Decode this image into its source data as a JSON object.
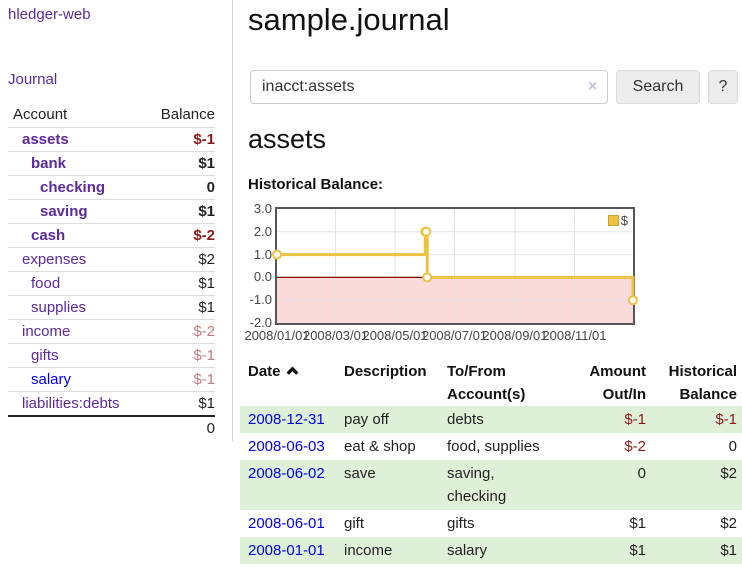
{
  "colors": {
    "purple_link": "#5b2a9a",
    "blue_link": "#0000ee",
    "negative_strong": "#8c1a1a",
    "negative_muted": "#c17d7d",
    "row_green": "#dff0d8",
    "chart_gold": "#edc240",
    "chart_negative_region": "#fbdada",
    "zero_line": "#8b0000"
  },
  "sidebar": {
    "brand": "hledger-web",
    "journal_link": "Journal",
    "accounts": {
      "header_account": "Account",
      "header_balance": "Balance",
      "rows": [
        {
          "name": "assets",
          "balance": "$-1",
          "indent": 1,
          "bold": true,
          "balance_style": "negative_strong"
        },
        {
          "name": "bank",
          "balance": "$1",
          "indent": 2,
          "bold": true,
          "balance_style": "normal"
        },
        {
          "name": "checking",
          "balance": "0",
          "indent": 3,
          "bold": true,
          "balance_style": "normal"
        },
        {
          "name": "saving",
          "balance": "$1",
          "indent": 3,
          "bold": true,
          "balance_style": "normal"
        },
        {
          "name": "cash",
          "balance": "$-2",
          "indent": 2,
          "bold": true,
          "balance_style": "negative_strong"
        },
        {
          "name": "expenses",
          "balance": "$2",
          "indent": 1,
          "bold": false,
          "balance_style": "normal"
        },
        {
          "name": "food",
          "balance": "$1",
          "indent": 2,
          "bold": false,
          "balance_style": "normal"
        },
        {
          "name": "supplies",
          "balance": "$1",
          "indent": 2,
          "bold": false,
          "balance_style": "normal"
        },
        {
          "name": "income",
          "balance": "$-2",
          "indent": 1,
          "bold": false,
          "balance_style": "negative_muted"
        },
        {
          "name": "gifts",
          "balance": "$-1",
          "indent": 2,
          "bold": false,
          "balance_style": "negative_muted"
        },
        {
          "name": "salary",
          "balance": "$-1",
          "indent": 2,
          "bold": false,
          "balance_style": "negative_muted",
          "link_style": "blue"
        },
        {
          "name": "liabilities:debts",
          "balance": "$1",
          "indent": 1,
          "bold": false,
          "balance_style": "normal"
        }
      ],
      "total": "0"
    }
  },
  "main": {
    "title": "sample.journal",
    "search": {
      "value": "inacct:assets",
      "clear_icon": "×",
      "search_button": "Search",
      "help_button": "?"
    },
    "account_heading": "assets",
    "chart_title": "Historical Balance:"
  },
  "chart_data": {
    "type": "line",
    "step": true,
    "title": "Historical Balance",
    "series": [
      {
        "name": "$",
        "color": "#edc240",
        "points": [
          [
            "2008-01-01",
            1
          ],
          [
            "2008-06-01",
            2
          ],
          [
            "2008-06-02",
            2
          ],
          [
            "2008-06-03",
            0
          ],
          [
            "2008-12-31",
            -1
          ]
        ]
      }
    ],
    "x_range": [
      "2008-01-01",
      "2008-12-31"
    ],
    "ylim": [
      -2,
      3
    ],
    "y_ticks": [
      "3.0",
      "2.0",
      "1.0",
      "0.0",
      "-1.0",
      "-2.0"
    ],
    "x_ticks": [
      {
        "label": "2008/01/01",
        "date": "2008-01-01"
      },
      {
        "label": "2008/03/01",
        "date": "2008-03-01"
      },
      {
        "label": "2008/05/01",
        "date": "2008-05-01"
      },
      {
        "label": "2008/07/01",
        "date": "2008-07-01"
      },
      {
        "label": "2008/09/01",
        "date": "2008-09-01"
      },
      {
        "label": "2008/11/01",
        "date": "2008-11-01"
      }
    ],
    "legend": {
      "label": "$",
      "position": "top-right"
    },
    "grid": true
  },
  "register": {
    "headers": {
      "date": "Date",
      "description": "Description",
      "account": "To/From\nAccount(s)",
      "amount": "Amount\nOut/In",
      "balance": "Historical\nBalance"
    },
    "rows": [
      {
        "date": "2008-12-31",
        "description": "pay off",
        "accounts": "debts",
        "amount": "$-1",
        "amount_negative": true,
        "balance": "$-1",
        "balance_negative": true,
        "shaded": true
      },
      {
        "date": "2008-06-03",
        "description": "eat & shop",
        "accounts": "food, supplies",
        "amount": "$-2",
        "amount_negative": true,
        "balance": "0",
        "balance_negative": false,
        "shaded": false
      },
      {
        "date": "2008-06-02",
        "description": "save",
        "accounts": "saving,\nchecking",
        "amount": "0",
        "amount_negative": false,
        "balance": "$2",
        "balance_negative": false,
        "shaded": true
      },
      {
        "date": "2008-06-01",
        "description": "gift",
        "accounts": "gifts",
        "amount": "$1",
        "amount_negative": false,
        "balance": "$2",
        "balance_negative": false,
        "shaded": false
      },
      {
        "date": "2008-01-01",
        "description": "income",
        "accounts": "salary",
        "amount": "$1",
        "amount_negative": false,
        "balance": "$1",
        "balance_negative": false,
        "shaded": true
      }
    ]
  }
}
